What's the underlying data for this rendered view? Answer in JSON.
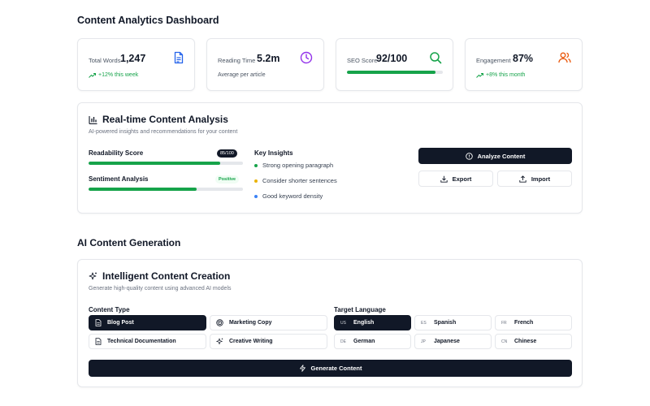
{
  "page": {
    "title": "Content Analytics Dashboard",
    "section2_title": "AI Content Generation"
  },
  "stats": [
    {
      "label": "Total Words",
      "value": "1,247",
      "sub": "+12% this week",
      "icon": "document-icon",
      "color": "#2563eb"
    },
    {
      "label": "Reading Time",
      "value": "5.2m",
      "sub": "Average per article",
      "icon": "clock-icon",
      "color": "#9333ea"
    },
    {
      "label": "SEO Score",
      "value": "92/100",
      "progress": 0.92,
      "icon": "search-icon",
      "color": "#16a34a"
    },
    {
      "label": "Engagement",
      "value": "87%",
      "sub": "+8% this month",
      "icon": "users-icon",
      "color": "#ea580c"
    }
  ],
  "analysis": {
    "title": "Real-time Content Analysis",
    "subtitle": "AI-powered insights and recommendations for your content",
    "readability_label": "Readability Score",
    "readability_badge": "85/100",
    "readability_value": 0.85,
    "sentiment_label": "Sentiment Analysis",
    "sentiment_badge": "Positive",
    "sentiment_value": 0.7,
    "insights_title": "Key Insights",
    "insights": [
      {
        "text": "Strong opening paragraph",
        "color": "#16a34a"
      },
      {
        "text": "Consider shorter sentences",
        "color": "#eab308"
      },
      {
        "text": "Good keyword density",
        "color": "#3b82f6"
      }
    ],
    "analyze_label": "Analyze Content",
    "export_label": "Export",
    "import_label": "Import"
  },
  "generation": {
    "title": "Intelligent Content Creation",
    "subtitle": "Generate high-quality content using advanced AI models",
    "content_type_label": "Content Type",
    "content_types": [
      {
        "label": "Blog Post",
        "icon": "document-icon",
        "selected": true
      },
      {
        "label": "Marketing Copy",
        "icon": "target-icon",
        "selected": false
      },
      {
        "label": "Technical Documentation",
        "icon": "document-icon",
        "selected": false
      },
      {
        "label": "Creative Writing",
        "icon": "sparkles-icon",
        "selected": false
      }
    ],
    "target_language_label": "Target Language",
    "languages": [
      {
        "code": "US",
        "label": "English",
        "selected": true
      },
      {
        "code": "ES",
        "label": "Spanish",
        "selected": false
      },
      {
        "code": "FR",
        "label": "French",
        "selected": false
      },
      {
        "code": "DE",
        "label": "German",
        "selected": false
      },
      {
        "code": "JP",
        "label": "Japanese",
        "selected": false
      },
      {
        "code": "CN",
        "label": "Chinese",
        "selected": false
      }
    ],
    "generate_label": "Generate Content"
  }
}
